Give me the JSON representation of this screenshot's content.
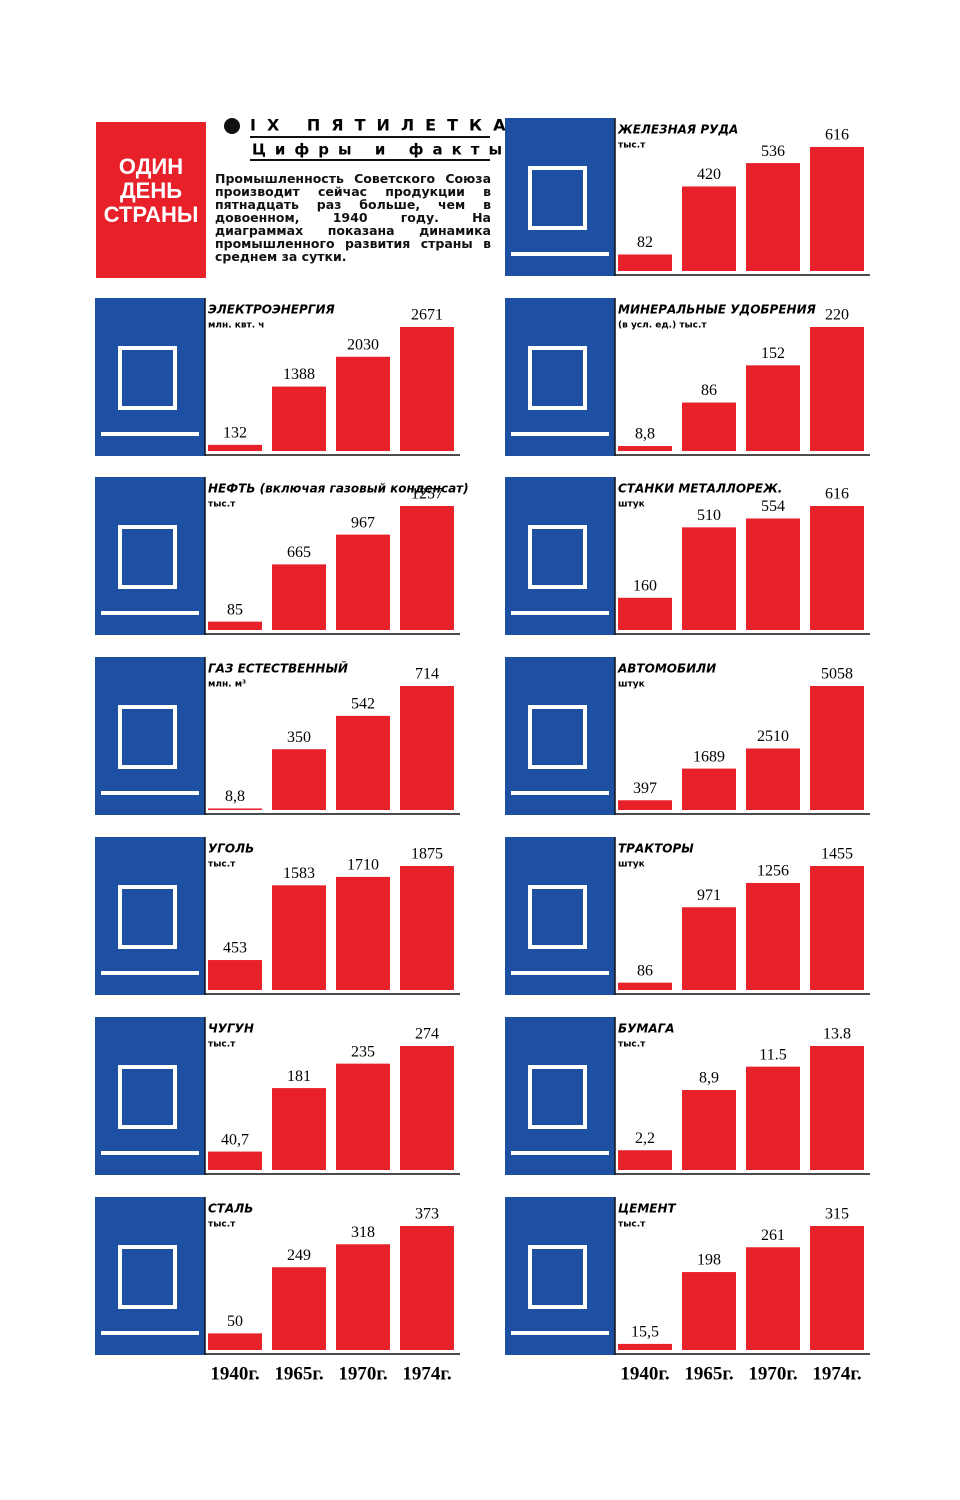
{
  "header": {
    "badge": [
      "ОДИН",
      "ДЕНЬ",
      "СТРАНЫ"
    ],
    "section": "IX ПЯТИЛЕТКА",
    "subsection": "Цифры и факты",
    "text": "Промышленность Советского Союза производит сейчас продукции в пятнадцать раз больше, чем в довоенном, 1940 году. На диаграммах показана динамика промышленного развития страны в среднем за сутки."
  },
  "chart_data": [
    {
      "type": "bar",
      "title": "ЖЕЛЕЗНАЯ РУДА",
      "subtitle": "тыс.т",
      "values": [
        82,
        420,
        536,
        616
      ],
      "color": "#e8202a"
    },
    {
      "type": "bar",
      "title": "ЭЛЕКТРОЭНЕРГИЯ",
      "subtitle": "млн. квт. ч",
      "values": [
        132,
        1388,
        2030,
        2671
      ],
      "color": "#e8202a"
    },
    {
      "type": "bar",
      "title": "МИНЕРАЛЬНЫЕ УДОБРЕНИЯ",
      "subtitle": "(в усл. ед.) тыс.т",
      "values": [
        8.8,
        86,
        152,
        220
      ],
      "value_labels": [
        "8,8",
        "86",
        "152",
        "220"
      ],
      "color": "#e8202a"
    },
    {
      "type": "bar",
      "title": "НЕФТЬ (включая газовый конденсат)",
      "subtitle": "тыс.т",
      "values": [
        85,
        665,
        967,
        1257
      ],
      "color": "#e8202a"
    },
    {
      "type": "bar",
      "title": "СТАНКИ МЕТАЛЛОРЕЖ.",
      "subtitle": "штук",
      "values": [
        160,
        510,
        554,
        616
      ],
      "color": "#e8202a"
    },
    {
      "type": "bar",
      "title": "ГАЗ ЕСТЕСТВЕННЫЙ",
      "subtitle": "млн. м³",
      "values": [
        8.8,
        350,
        542,
        714
      ],
      "value_labels": [
        "8,8",
        "350",
        "542",
        "714"
      ],
      "color": "#e8202a"
    },
    {
      "type": "bar",
      "title": "АВТОМОБИЛИ",
      "subtitle": "штук",
      "values": [
        397,
        1689,
        2510,
        5058
      ],
      "color": "#e8202a"
    },
    {
      "type": "bar",
      "title": "УГОЛЬ",
      "subtitle": "тыс.т",
      "values": [
        453,
        1583,
        1710,
        1875
      ],
      "color": "#e8202a"
    },
    {
      "type": "bar",
      "title": "ТРАКТОРЫ",
      "subtitle": "штук",
      "values": [
        86,
        971,
        1256,
        1455
      ],
      "color": "#e8202a"
    },
    {
      "type": "bar",
      "title": "ЧУГУН",
      "subtitle": "тыс.т",
      "values": [
        40.7,
        181,
        235,
        274
      ],
      "value_labels": [
        "40,7",
        "181",
        "235",
        "274"
      ],
      "color": "#e8202a"
    },
    {
      "type": "bar",
      "title": "БУМАГА",
      "subtitle": "тыс.т",
      "values": [
        2.2,
        8.9,
        11.5,
        13.8
      ],
      "value_labels": [
        "2,2",
        "8,9",
        "11.5",
        "13.8"
      ],
      "color": "#e8202a"
    },
    {
      "type": "bar",
      "title": "СТАЛЬ",
      "subtitle": "тыс.т",
      "categories": [
        "1940г.",
        "1965г.",
        "1970г.",
        "1974г."
      ],
      "values": [
        50,
        249,
        318,
        373
      ],
      "color": "#e8202a"
    },
    {
      "type": "bar",
      "title": "ЦЕМЕНТ",
      "subtitle": "тыс.т",
      "categories": [
        "1940г.",
        "1965г.",
        "1970г.",
        "1974г."
      ],
      "values": [
        15.5,
        198,
        261,
        315
      ],
      "value_labels": [
        "15,5",
        "198",
        "261",
        "315"
      ],
      "color": "#e8202a"
    }
  ]
}
